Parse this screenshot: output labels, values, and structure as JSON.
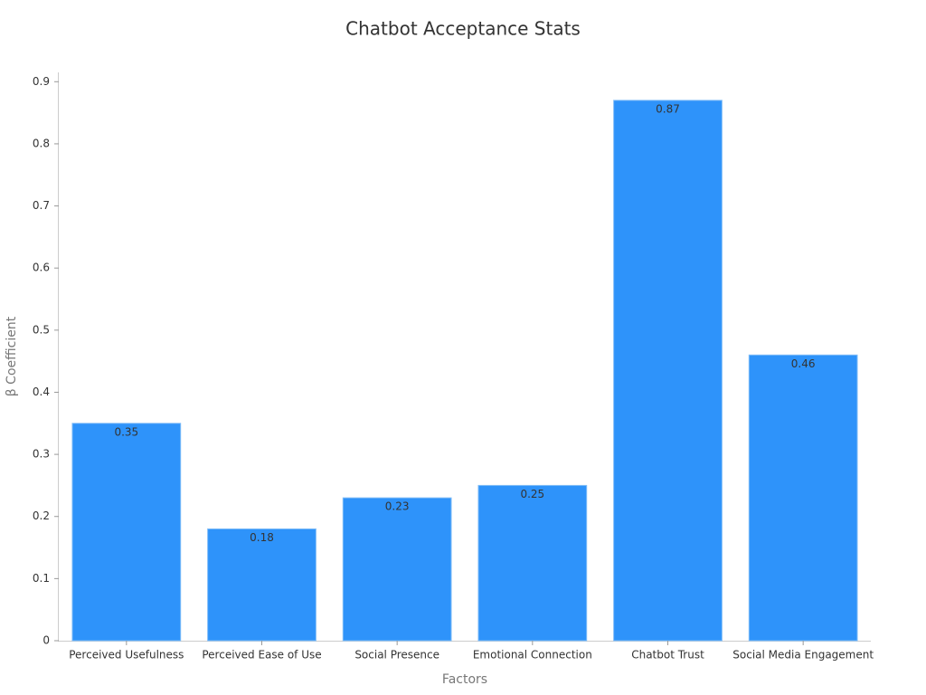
{
  "chart_data": {
    "type": "bar",
    "title": "Chatbot Acceptance Stats",
    "x_label": "Factors",
    "y_label": "β Coefficient",
    "categories": [
      "Perceived Usefulness",
      "Perceived Ease of Use",
      "Social Presence",
      "Emotional Connection",
      "Chatbot Trust",
      "Social Media Engagement"
    ],
    "values": [
      0.35,
      0.18,
      0.23,
      0.25,
      0.87,
      0.46
    ],
    "color": "#2e93fa",
    "ylim": [
      0,
      0.915
    ],
    "yticks": [
      0,
      0.1,
      0.2,
      0.3,
      0.4,
      0.5,
      0.6,
      0.7,
      0.8,
      0.9
    ],
    "grid": false
  }
}
